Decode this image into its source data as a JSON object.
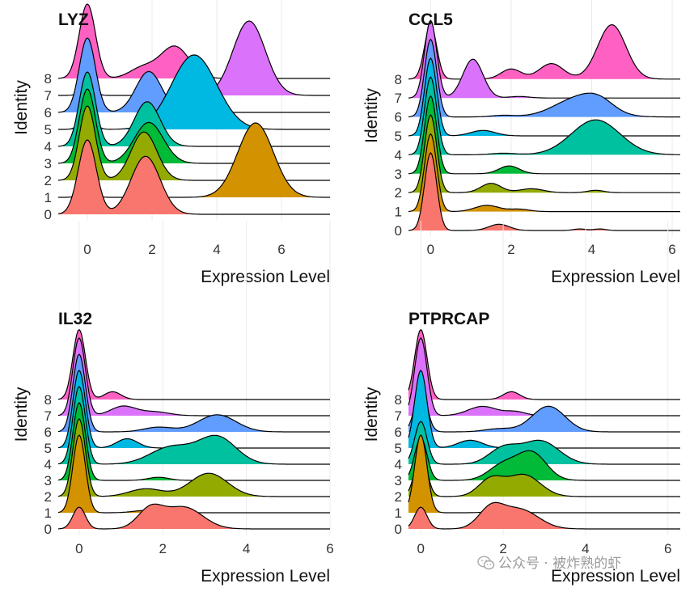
{
  "watermark": {
    "text": "公众号 · 被炸熟的虾",
    "icon": "wechat-icon"
  },
  "chart_data": [
    {
      "type": "ridgeline",
      "title": "LYZ",
      "xlabel": "Expression Level",
      "ylabel": "Identity",
      "xlim": [
        -0.9,
        7.5
      ],
      "xticks": [
        0,
        2,
        4,
        6
      ],
      "grid": true,
      "categories": [
        "0",
        "1",
        "2",
        "3",
        "4",
        "5",
        "6",
        "7",
        "8"
      ],
      "series": [
        {
          "name": "0",
          "color": "#F8766D",
          "peaks": [
            {
              "mu": 0,
              "sigma": 0.28,
              "h": 1.0
            },
            {
              "mu": 1.8,
              "sigma": 0.45,
              "h": 0.78
            }
          ]
        },
        {
          "name": "1",
          "color": "#D39200",
          "peaks": [
            {
              "mu": 0,
              "sigma": 0.2,
              "h": 0.12
            },
            {
              "mu": 5.2,
              "sigma": 0.55,
              "h": 1.0
            }
          ]
        },
        {
          "name": "2",
          "color": "#93AA00",
          "peaks": [
            {
              "mu": 0,
              "sigma": 0.25,
              "h": 1.0
            },
            {
              "mu": 1.75,
              "sigma": 0.4,
              "h": 0.65
            }
          ]
        },
        {
          "name": "3",
          "color": "#00BA38",
          "peaks": [
            {
              "mu": 0,
              "sigma": 0.25,
              "h": 1.0
            },
            {
              "mu": 1.9,
              "sigma": 0.45,
              "h": 0.55
            }
          ]
        },
        {
          "name": "4",
          "color": "#00C19F",
          "peaks": [
            {
              "mu": 0,
              "sigma": 0.25,
              "h": 1.0
            },
            {
              "mu": 1.85,
              "sigma": 0.4,
              "h": 0.6
            }
          ]
        },
        {
          "name": "5",
          "color": "#00B9E3",
          "peaks": [
            {
              "mu": 0,
              "sigma": 0.2,
              "h": 0.2
            },
            {
              "mu": 3.3,
              "sigma": 0.7,
              "h": 1.0
            }
          ]
        },
        {
          "name": "6",
          "color": "#619CFF",
          "peaks": [
            {
              "mu": 0,
              "sigma": 0.25,
              "h": 1.0
            },
            {
              "mu": 1.9,
              "sigma": 0.4,
              "h": 0.55
            }
          ]
        },
        {
          "name": "7",
          "color": "#DB72FB",
          "peaks": [
            {
              "mu": 0,
              "sigma": 0.2,
              "h": 0.1
            },
            {
              "mu": 5.0,
              "sigma": 0.5,
              "h": 1.0
            }
          ]
        },
        {
          "name": "8",
          "color": "#FF61C3",
          "peaks": [
            {
              "mu": 0,
              "sigma": 0.25,
              "h": 1.0
            },
            {
              "mu": 1.7,
              "sigma": 0.4,
              "h": 0.14
            },
            {
              "mu": 2.7,
              "sigma": 0.45,
              "h": 0.43
            }
          ]
        }
      ]
    },
    {
      "type": "ridgeline",
      "title": "CCL5",
      "xlabel": "Expression Level",
      "ylabel": "Identity",
      "xlim": [
        -0.55,
        6.2
      ],
      "xticks": [
        0,
        2,
        4,
        6
      ],
      "grid": true,
      "categories": [
        "0",
        "1",
        "2",
        "3",
        "4",
        "5",
        "6",
        "7",
        "8"
      ],
      "series": [
        {
          "name": "0",
          "color": "#F8766D",
          "peaks": [
            {
              "mu": 0,
              "sigma": 0.15,
              "h": 1.0
            },
            {
              "mu": 1.7,
              "sigma": 0.25,
              "h": 0.08
            },
            {
              "mu": 3.7,
              "sigma": 0.15,
              "h": 0.02
            },
            {
              "mu": 4.2,
              "sigma": 0.15,
              "h": 0.02
            }
          ]
        },
        {
          "name": "1",
          "color": "#D39200",
          "peaks": [
            {
              "mu": 0,
              "sigma": 0.15,
              "h": 1.0
            },
            {
              "mu": 1.4,
              "sigma": 0.3,
              "h": 0.08
            },
            {
              "mu": 2.2,
              "sigma": 0.25,
              "h": 0.03
            }
          ]
        },
        {
          "name": "2",
          "color": "#93AA00",
          "peaks": [
            {
              "mu": 0,
              "sigma": 0.15,
              "h": 1.0
            },
            {
              "mu": 1.5,
              "sigma": 0.25,
              "h": 0.12
            },
            {
              "mu": 2.5,
              "sigma": 0.3,
              "h": 0.05
            },
            {
              "mu": 4.1,
              "sigma": 0.2,
              "h": 0.03
            }
          ]
        },
        {
          "name": "3",
          "color": "#00BA38",
          "peaks": [
            {
              "mu": 0,
              "sigma": 0.15,
              "h": 1.0
            },
            {
              "mu": 1.95,
              "sigma": 0.25,
              "h": 0.1
            }
          ]
        },
        {
          "name": "4",
          "color": "#00C19F",
          "peaks": [
            {
              "mu": 0,
              "sigma": 0.15,
              "h": 1.0
            },
            {
              "mu": 1.8,
              "sigma": 0.3,
              "h": 0.02
            },
            {
              "mu": 4.1,
              "sigma": 0.6,
              "h": 0.45
            }
          ]
        },
        {
          "name": "5",
          "color": "#00B9E3",
          "peaks": [
            {
              "mu": 0,
              "sigma": 0.15,
              "h": 1.0
            },
            {
              "mu": 1.3,
              "sigma": 0.3,
              "h": 0.07
            }
          ]
        },
        {
          "name": "6",
          "color": "#619CFF",
          "peaks": [
            {
              "mu": 0,
              "sigma": 0.15,
              "h": 1.0
            },
            {
              "mu": 1.8,
              "sigma": 0.3,
              "h": 0.02
            },
            {
              "mu": 3.7,
              "sigma": 0.6,
              "h": 0.25
            },
            {
              "mu": 4.2,
              "sigma": 0.35,
              "h": 0.1
            }
          ]
        },
        {
          "name": "7",
          "color": "#DB72FB",
          "peaks": [
            {
              "mu": 0,
              "sigma": 0.15,
              "h": 1.0
            },
            {
              "mu": 1.05,
              "sigma": 0.25,
              "h": 0.5
            },
            {
              "mu": 2.2,
              "sigma": 0.25,
              "h": 0.02
            }
          ]
        },
        {
          "name": "8",
          "color": "#FF61C3",
          "peaks": [
            {
              "mu": 0,
              "sigma": 0.15,
              "h": 0.7
            },
            {
              "mu": 2.0,
              "sigma": 0.25,
              "h": 0.13
            },
            {
              "mu": 3.0,
              "sigma": 0.3,
              "h": 0.2
            },
            {
              "mu": 4.5,
              "sigma": 0.35,
              "h": 0.7
            }
          ]
        }
      ]
    },
    {
      "type": "ridgeline",
      "title": "IL32",
      "xlabel": "Expression Level",
      "ylabel": "Identity",
      "xlim": [
        -0.5,
        6.0
      ],
      "xticks": [
        0,
        2,
        4,
        6
      ],
      "grid": true,
      "categories": [
        "0",
        "1",
        "2",
        "3",
        "4",
        "5",
        "6",
        "7",
        "8"
      ],
      "series": [
        {
          "name": "0",
          "color": "#F8766D",
          "peaks": [
            {
              "mu": 0,
              "sigma": 0.15,
              "h": 0.28
            },
            {
              "mu": 1.7,
              "sigma": 0.3,
              "h": 0.25
            },
            {
              "mu": 2.5,
              "sigma": 0.45,
              "h": 0.28
            }
          ]
        },
        {
          "name": "1",
          "color": "#D39200",
          "peaks": [
            {
              "mu": 0,
              "sigma": 0.15,
              "h": 1.0
            },
            {
              "mu": 1.6,
              "sigma": 0.3,
              "h": 0.03
            }
          ]
        },
        {
          "name": "2",
          "color": "#93AA00",
          "peaks": [
            {
              "mu": 0,
              "sigma": 0.15,
              "h": 1.0
            },
            {
              "mu": 1.6,
              "sigma": 0.4,
              "h": 0.1
            },
            {
              "mu": 3.1,
              "sigma": 0.45,
              "h": 0.3
            }
          ]
        },
        {
          "name": "3",
          "color": "#00BA38",
          "peaks": [
            {
              "mu": 0,
              "sigma": 0.15,
              "h": 1.0
            },
            {
              "mu": 1.9,
              "sigma": 0.25,
              "h": 0.04
            }
          ]
        },
        {
          "name": "4",
          "color": "#00C19F",
          "peaks": [
            {
              "mu": 0,
              "sigma": 0.15,
              "h": 1.0
            },
            {
              "mu": 2.2,
              "sigma": 0.5,
              "h": 0.22
            },
            {
              "mu": 3.3,
              "sigma": 0.45,
              "h": 0.35
            }
          ]
        },
        {
          "name": "5",
          "color": "#00B9E3",
          "peaks": [
            {
              "mu": 0,
              "sigma": 0.15,
              "h": 1.0
            },
            {
              "mu": 1.15,
              "sigma": 0.25,
              "h": 0.12
            }
          ]
        },
        {
          "name": "6",
          "color": "#619CFF",
          "peaks": [
            {
              "mu": 0,
              "sigma": 0.15,
              "h": 1.0
            },
            {
              "mu": 1.9,
              "sigma": 0.35,
              "h": 0.06
            },
            {
              "mu": 3.3,
              "sigma": 0.45,
              "h": 0.22
            }
          ]
        },
        {
          "name": "7",
          "color": "#DB72FB",
          "peaks": [
            {
              "mu": 0,
              "sigma": 0.15,
              "h": 1.0
            },
            {
              "mu": 1.05,
              "sigma": 0.3,
              "h": 0.12
            },
            {
              "mu": 1.8,
              "sigma": 0.35,
              "h": 0.05
            }
          ]
        },
        {
          "name": "8",
          "color": "#FF61C3",
          "peaks": [
            {
              "mu": 0,
              "sigma": 0.15,
              "h": 0.9
            },
            {
              "mu": 0.8,
              "sigma": 0.2,
              "h": 0.1
            }
          ]
        }
      ]
    },
    {
      "type": "ridgeline",
      "title": "PTPRCAP",
      "xlabel": "Expression Level",
      "ylabel": "Identity",
      "xlim": [
        -0.3,
        6.3
      ],
      "xticks": [
        0,
        2,
        4,
        6
      ],
      "grid": true,
      "categories": [
        "0",
        "1",
        "2",
        "3",
        "4",
        "5",
        "6",
        "7",
        "8"
      ],
      "series": [
        {
          "name": "0",
          "color": "#F8766D",
          "peaks": [
            {
              "mu": 0,
              "sigma": 0.15,
              "h": 0.28
            },
            {
              "mu": 1.7,
              "sigma": 0.3,
              "h": 0.25
            },
            {
              "mu": 2.4,
              "sigma": 0.45,
              "h": 0.25
            }
          ]
        },
        {
          "name": "1",
          "color": "#D39200",
          "peaks": [
            {
              "mu": 0,
              "sigma": 0.15,
              "h": 1.0
            },
            {
              "mu": 2.0,
              "sigma": 0.3,
              "h": 0.03
            }
          ]
        },
        {
          "name": "2",
          "color": "#93AA00",
          "peaks": [
            {
              "mu": 0,
              "sigma": 0.15,
              "h": 0.55
            },
            {
              "mu": 1.7,
              "sigma": 0.3,
              "h": 0.22
            },
            {
              "mu": 2.5,
              "sigma": 0.4,
              "h": 0.28
            }
          ]
        },
        {
          "name": "3",
          "color": "#00BA38",
          "peaks": [
            {
              "mu": 0,
              "sigma": 0.15,
              "h": 0.55
            },
            {
              "mu": 2.0,
              "sigma": 0.35,
              "h": 0.2
            },
            {
              "mu": 2.7,
              "sigma": 0.35,
              "h": 0.35
            }
          ]
        },
        {
          "name": "4",
          "color": "#00C19F",
          "peaks": [
            {
              "mu": 0,
              "sigma": 0.15,
              "h": 0.55
            },
            {
              "mu": 2.0,
              "sigma": 0.35,
              "h": 0.2
            },
            {
              "mu": 2.9,
              "sigma": 0.45,
              "h": 0.3
            }
          ]
        },
        {
          "name": "5",
          "color": "#00B9E3",
          "peaks": [
            {
              "mu": 0,
              "sigma": 0.15,
              "h": 1.0
            },
            {
              "mu": 1.2,
              "sigma": 0.3,
              "h": 0.1
            }
          ]
        },
        {
          "name": "6",
          "color": "#619CFF",
          "peaks": [
            {
              "mu": 0,
              "sigma": 0.15,
              "h": 0.55
            },
            {
              "mu": 1.9,
              "sigma": 0.35,
              "h": 0.04
            },
            {
              "mu": 3.1,
              "sigma": 0.4,
              "h": 0.33
            }
          ]
        },
        {
          "name": "7",
          "color": "#DB72FB",
          "peaks": [
            {
              "mu": 0,
              "sigma": 0.15,
              "h": 1.0
            },
            {
              "mu": 1.5,
              "sigma": 0.35,
              "h": 0.12
            },
            {
              "mu": 2.3,
              "sigma": 0.25,
              "h": 0.05
            }
          ]
        },
        {
          "name": "8",
          "color": "#FF61C3",
          "peaks": [
            {
              "mu": 0,
              "sigma": 0.15,
              "h": 0.9
            },
            {
              "mu": 2.2,
              "sigma": 0.2,
              "h": 0.1
            }
          ]
        }
      ]
    }
  ]
}
